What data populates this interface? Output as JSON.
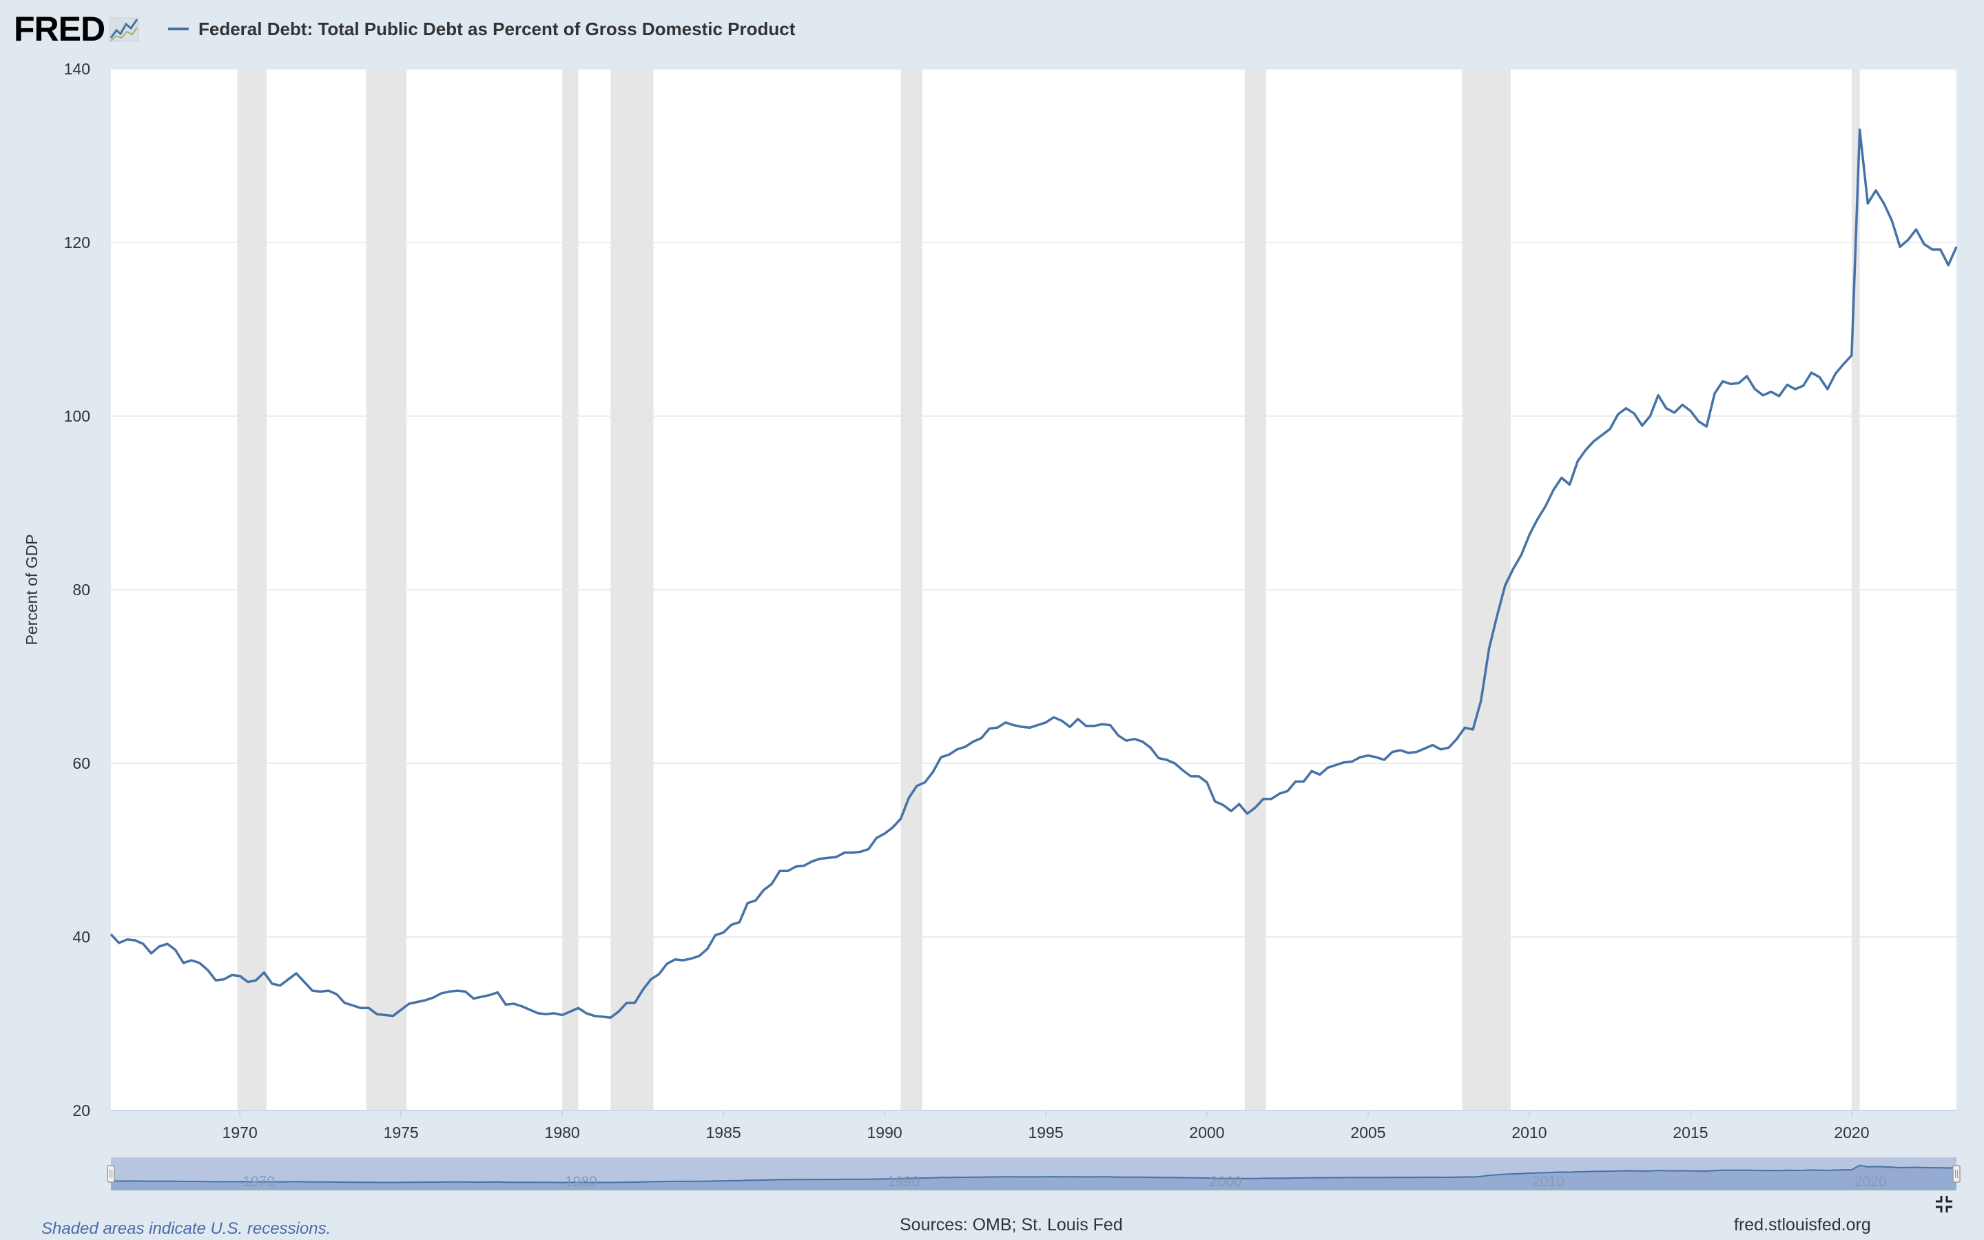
{
  "header": {
    "logo_text": "FRED",
    "legend_label": "Federal Debt: Total Public Debt as Percent of Gross Domestic Product"
  },
  "footer": {
    "recession_note": "Shaded areas indicate U.S. recessions.",
    "sources": "Sources: OMB; St. Louis Fed",
    "site": "fred.stlouisfed.org"
  },
  "colors": {
    "series": "#4572a7",
    "recession": "#e6e6e6",
    "grid": "#e6e6e6",
    "navigator_fill": "#b7c5e0",
    "navigator_series": "#4572a7"
  },
  "chart_data": {
    "type": "line",
    "title": "",
    "xlabel": "",
    "ylabel": "Percent of GDP",
    "xlim": [
      1966.0,
      2023.25
    ],
    "ylim": [
      20,
      140
    ],
    "yticks": [
      20,
      40,
      60,
      80,
      100,
      120,
      140
    ],
    "xticks": [
      1970,
      1975,
      1980,
      1985,
      1990,
      1995,
      2000,
      2005,
      2010,
      2015,
      2020
    ],
    "navigator_ticks": [
      1970,
      1980,
      1990,
      2000,
      2010,
      2020
    ],
    "grid": true,
    "legend": "top-left",
    "recessions": [
      [
        1969.92,
        1970.83
      ],
      [
        1973.92,
        1975.17
      ],
      [
        1980.0,
        1980.5
      ],
      [
        1981.5,
        1982.83
      ],
      [
        1990.5,
        1991.17
      ],
      [
        2001.17,
        2001.83
      ],
      [
        2007.92,
        2009.42
      ],
      [
        2020.0,
        2020.25
      ]
    ],
    "series": [
      {
        "name": "Federal Debt: Total Public Debt as Percent of Gross Domestic Product",
        "x": [
          1966.0,
          1966.25,
          1966.5,
          1966.75,
          1967.0,
          1967.25,
          1967.5,
          1967.75,
          1968.0,
          1968.25,
          1968.5,
          1968.75,
          1969.0,
          1969.25,
          1969.5,
          1969.75,
          1970.0,
          1970.25,
          1970.5,
          1970.75,
          1971.0,
          1971.25,
          1971.5,
          1971.75,
          1972.0,
          1972.25,
          1972.5,
          1972.75,
          1973.0,
          1973.25,
          1973.5,
          1973.75,
          1974.0,
          1974.25,
          1974.5,
          1974.75,
          1975.0,
          1975.25,
          1975.5,
          1975.75,
          1976.0,
          1976.25,
          1976.5,
          1976.75,
          1977.0,
          1977.25,
          1977.5,
          1977.75,
          1978.0,
          1978.25,
          1978.5,
          1978.75,
          1979.0,
          1979.25,
          1979.5,
          1979.75,
          1980.0,
          1980.25,
          1980.5,
          1980.75,
          1981.0,
          1981.25,
          1981.5,
          1981.75,
          1982.0,
          1982.25,
          1982.5,
          1982.75,
          1983.0,
          1983.25,
          1983.5,
          1983.75,
          1984.0,
          1984.25,
          1984.5,
          1984.75,
          1985.0,
          1985.25,
          1985.5,
          1985.75,
          1986.0,
          1986.25,
          1986.5,
          1986.75,
          1987.0,
          1987.25,
          1987.5,
          1987.75,
          1988.0,
          1988.25,
          1988.5,
          1988.75,
          1989.0,
          1989.25,
          1989.5,
          1989.75,
          1990.0,
          1990.25,
          1990.5,
          1990.75,
          1991.0,
          1991.25,
          1991.5,
          1991.75,
          1992.0,
          1992.25,
          1992.5,
          1992.75,
          1993.0,
          1993.25,
          1993.5,
          1993.75,
          1994.0,
          1994.25,
          1994.5,
          1994.75,
          1995.0,
          1995.25,
          1995.5,
          1995.75,
          1996.0,
          1996.25,
          1996.5,
          1996.75,
          1997.0,
          1997.25,
          1997.5,
          1997.75,
          1998.0,
          1998.25,
          1998.5,
          1998.75,
          1999.0,
          1999.25,
          1999.5,
          1999.75,
          2000.0,
          2000.25,
          2000.5,
          2000.75,
          2001.0,
          2001.25,
          2001.5,
          2001.75,
          2002.0,
          2002.25,
          2002.5,
          2002.75,
          2003.0,
          2003.25,
          2003.5,
          2003.75,
          2004.0,
          2004.25,
          2004.5,
          2004.75,
          2005.0,
          2005.25,
          2005.5,
          2005.75,
          2006.0,
          2006.25,
          2006.5,
          2006.75,
          2007.0,
          2007.25,
          2007.5,
          2007.75,
          2008.0,
          2008.25,
          2008.5,
          2008.75,
          2009.0,
          2009.25,
          2009.5,
          2009.75,
          2010.0,
          2010.25,
          2010.5,
          2010.75,
          2011.0,
          2011.25,
          2011.5,
          2011.75,
          2012.0,
          2012.25,
          2012.5,
          2012.75,
          2013.0,
          2013.25,
          2013.5,
          2013.75,
          2014.0,
          2014.25,
          2014.5,
          2014.75,
          2015.0,
          2015.25,
          2015.5,
          2015.75,
          2016.0,
          2016.25,
          2016.5,
          2016.75,
          2017.0,
          2017.25,
          2017.5,
          2017.75,
          2018.0,
          2018.25,
          2018.5,
          2018.75,
          2019.0,
          2019.25,
          2019.5,
          2019.75,
          2020.0,
          2020.25,
          2020.5,
          2020.75,
          2021.0,
          2021.25,
          2021.5,
          2021.75,
          2022.0,
          2022.25,
          2022.5,
          2022.75,
          2023.0,
          2023.25
        ],
        "values": [
          40.3,
          39.3,
          39.7,
          39.6,
          39.2,
          38.1,
          38.9,
          39.2,
          38.5,
          37.0,
          37.3,
          37.0,
          36.2,
          35.0,
          35.1,
          35.6,
          35.5,
          34.8,
          35.0,
          35.9,
          34.6,
          34.4,
          35.1,
          35.8,
          34.8,
          33.8,
          33.7,
          33.8,
          33.4,
          32.4,
          32.1,
          31.8,
          31.8,
          31.1,
          31.0,
          30.9,
          31.6,
          32.3,
          32.5,
          32.7,
          33.0,
          33.5,
          33.7,
          33.8,
          33.7,
          32.9,
          33.1,
          33.3,
          33.6,
          32.2,
          32.3,
          32.0,
          31.6,
          31.2,
          31.1,
          31.2,
          31.0,
          31.4,
          31.8,
          31.2,
          30.9,
          30.8,
          30.7,
          31.4,
          32.4,
          32.4,
          33.9,
          35.1,
          35.7,
          36.9,
          37.4,
          37.3,
          37.5,
          37.8,
          38.6,
          40.2,
          40.5,
          41.4,
          41.7,
          43.9,
          44.2,
          45.4,
          46.1,
          47.6,
          47.6,
          48.1,
          48.2,
          48.7,
          49.0,
          49.1,
          49.2,
          49.7,
          49.7,
          49.8,
          50.1,
          51.4,
          51.9,
          52.6,
          53.6,
          56.0,
          57.4,
          57.8,
          59.0,
          60.7,
          61.0,
          61.6,
          61.9,
          62.5,
          62.9,
          64.0,
          64.1,
          64.7,
          64.4,
          64.2,
          64.1,
          64.4,
          64.7,
          65.3,
          64.9,
          64.2,
          65.1,
          64.3,
          64.3,
          64.5,
          64.4,
          63.2,
          62.6,
          62.8,
          62.5,
          61.8,
          60.6,
          60.4,
          60.0,
          59.2,
          58.5,
          58.5,
          57.8,
          55.6,
          55.2,
          54.5,
          55.3,
          54.2,
          54.9,
          55.9,
          55.9,
          56.5,
          56.8,
          57.9,
          57.9,
          59.1,
          58.7,
          59.5,
          59.8,
          60.1,
          60.2,
          60.7,
          60.9,
          60.7,
          60.4,
          61.3,
          61.5,
          61.2,
          61.3,
          61.7,
          62.1,
          61.6,
          61.8,
          62.8,
          64.1,
          63.9,
          67.2,
          73.2,
          77.0,
          80.5,
          82.4,
          84.0,
          86.3,
          88.1,
          89.6,
          91.5,
          92.9,
          92.1,
          94.8,
          96.1,
          97.1,
          97.8,
          98.5,
          100.2,
          100.9,
          100.3,
          98.9,
          100.0,
          102.4,
          100.9,
          100.4,
          101.3,
          100.6,
          99.4,
          98.8,
          102.6,
          104.0,
          103.7,
          103.8,
          104.6,
          103.1,
          102.4,
          102.8,
          102.3,
          103.6,
          103.1,
          103.5,
          105.0,
          104.5,
          103.1,
          104.9,
          106.0,
          107.0,
          133.0,
          124.5,
          126.0,
          124.5,
          122.5,
          119.5,
          120.3,
          121.5,
          119.8,
          119.2,
          119.2,
          117.4,
          119.5
        ]
      }
    ]
  }
}
